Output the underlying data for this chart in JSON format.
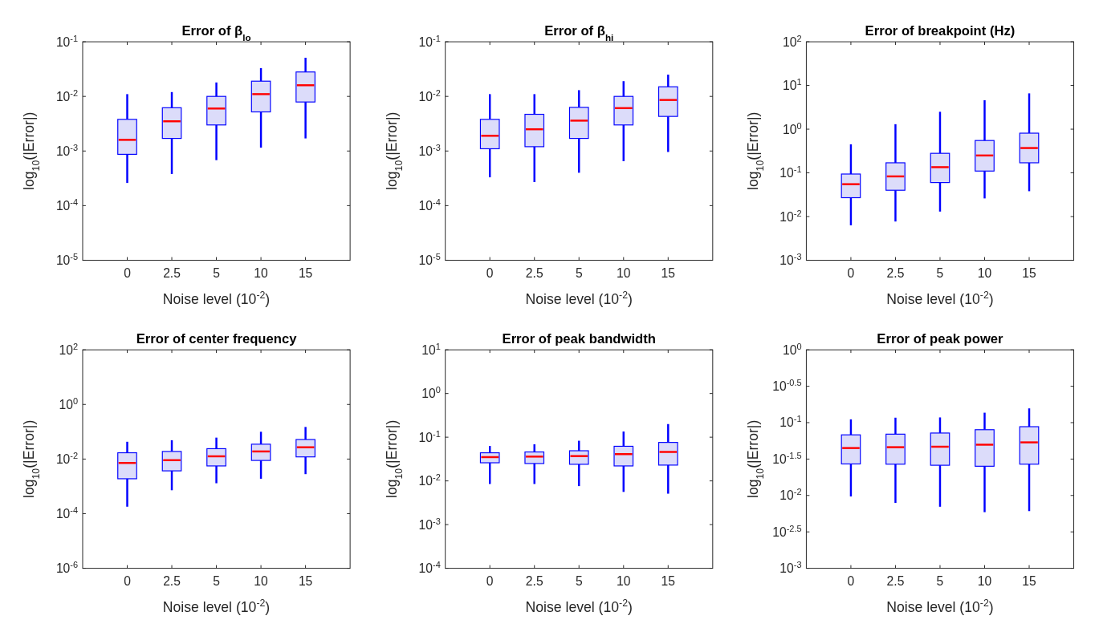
{
  "chart_data": [
    {
      "type": "box",
      "title": "Error of β$_{lo}$",
      "xlabel": "Noise level (10$^{-2}$)",
      "ylabel": "log$_{10}$(|Error|)",
      "categories": [
        "0",
        "2.5",
        "5",
        "10",
        "15"
      ],
      "log": "y",
      "ylim": [
        1e-05,
        0.1
      ],
      "yticks": [
        {
          "value": 1e-05,
          "label": "10$^{-5}$"
        },
        {
          "value": 0.0001,
          "label": "10$^{-4}$"
        },
        {
          "value": 0.001,
          "label": "10$^{-3}$"
        },
        {
          "value": 0.01,
          "label": "10$^{-2}$"
        },
        {
          "value": 0.1,
          "label": "10$^{-1}$"
        }
      ],
      "grid": false,
      "series": [
        {
          "color": "#0000ff",
          "boxes": [
            {
              "low": 0.00026,
              "q1": 0.00087,
              "median": 0.0016,
              "q3": 0.0038,
              "high": 0.011
            },
            {
              "low": 0.00038,
              "q1": 0.0017,
              "median": 0.0035,
              "q3": 0.0062,
              "high": 0.012
            },
            {
              "low": 0.00068,
              "q1": 0.003,
              "median": 0.006,
              "q3": 0.01,
              "high": 0.018
            },
            {
              "low": 0.00115,
              "q1": 0.0052,
              "median": 0.011,
              "q3": 0.019,
              "high": 0.033
            },
            {
              "low": 0.0017,
              "q1": 0.0079,
              "median": 0.016,
              "q3": 0.028,
              "high": 0.051
            }
          ]
        }
      ]
    },
    {
      "type": "box",
      "title": "Error of β$_{hi}$",
      "xlabel": "Noise level (10$^{-2}$)",
      "ylabel": "log$_{10}$(|Error|)",
      "categories": [
        "0",
        "2.5",
        "5",
        "10",
        "15"
      ],
      "log": "y",
      "ylim": [
        1e-05,
        0.1
      ],
      "yticks": [
        {
          "value": 1e-05,
          "label": "10$^{-5}$"
        },
        {
          "value": 0.0001,
          "label": "10$^{-4}$"
        },
        {
          "value": 0.001,
          "label": "10$^{-3}$"
        },
        {
          "value": 0.01,
          "label": "10$^{-2}$"
        },
        {
          "value": 0.1,
          "label": "10$^{-1}$"
        }
      ],
      "grid": false,
      "series": [
        {
          "color": "#0000ff",
          "boxes": [
            {
              "low": 0.00033,
              "q1": 0.0011,
              "median": 0.0019,
              "q3": 0.0038,
              "high": 0.011
            },
            {
              "low": 0.00027,
              "q1": 0.0012,
              "median": 0.0025,
              "q3": 0.0047,
              "high": 0.011
            },
            {
              "low": 0.0004,
              "q1": 0.0017,
              "median": 0.0036,
              "q3": 0.0063,
              "high": 0.013
            },
            {
              "low": 0.00065,
              "q1": 0.003,
              "median": 0.0061,
              "q3": 0.01,
              "high": 0.019
            },
            {
              "low": 0.00096,
              "q1": 0.0043,
              "median": 0.0086,
              "q3": 0.015,
              "high": 0.025
            }
          ]
        }
      ]
    },
    {
      "type": "box",
      "title": "Error of breakpoint (Hz)",
      "xlabel": "Noise level (10$^{-2}$)",
      "ylabel": "log$_{10}$(|Error|)",
      "categories": [
        "0",
        "2.5",
        "5",
        "10",
        "15"
      ],
      "log": "y",
      "ylim": [
        0.001,
        100
      ],
      "yticks": [
        {
          "value": 0.001,
          "label": "10$^{-3}$"
        },
        {
          "value": 0.01,
          "label": "10$^{-2}$"
        },
        {
          "value": 0.1,
          "label": "10$^{-1}$"
        },
        {
          "value": 1,
          "label": "10$^{0}$"
        },
        {
          "value": 10,
          "label": "10$^{1}$"
        },
        {
          "value": 100,
          "label": "10$^{2}$"
        }
      ],
      "grid": false,
      "series": [
        {
          "color": "#0000ff",
          "boxes": [
            {
              "low": 0.0063,
              "q1": 0.027,
              "median": 0.055,
              "q3": 0.094,
              "high": 0.45
            },
            {
              "low": 0.0077,
              "q1": 0.04,
              "median": 0.083,
              "q3": 0.17,
              "high": 1.3
            },
            {
              "low": 0.013,
              "q1": 0.06,
              "median": 0.135,
              "q3": 0.28,
              "high": 2.5
            },
            {
              "low": 0.026,
              "q1": 0.11,
              "median": 0.25,
              "q3": 0.55,
              "high": 4.6
            },
            {
              "low": 0.038,
              "q1": 0.17,
              "median": 0.37,
              "q3": 0.81,
              "high": 6.6
            }
          ]
        }
      ]
    },
    {
      "type": "box",
      "title": "Error of center frequency",
      "xlabel": "Noise level (10$^{-2}$)",
      "ylabel": "log$_{10}$(|Error|)",
      "categories": [
        "0",
        "2.5",
        "5",
        "10",
        "15"
      ],
      "log": "y",
      "ylim": [
        1e-06,
        100
      ],
      "yticks": [
        {
          "value": 1e-06,
          "label": "10$^{-6}$"
        },
        {
          "value": 0.0001,
          "label": "10$^{-4}$"
        },
        {
          "value": 0.01,
          "label": "10$^{-2}$"
        },
        {
          "value": 1,
          "label": "10$^{0}$"
        },
        {
          "value": 100,
          "label": "10$^{2}$"
        }
      ],
      "grid": false,
      "series": [
        {
          "color": "#0000ff",
          "boxes": [
            {
              "low": 0.00018,
              "q1": 0.0019,
              "median": 0.0072,
              "q3": 0.017,
              "high": 0.043
            },
            {
              "low": 0.00072,
              "q1": 0.0037,
              "median": 0.0091,
              "q3": 0.019,
              "high": 0.049
            },
            {
              "low": 0.0013,
              "q1": 0.0056,
              "median": 0.0126,
              "q3": 0.024,
              "high": 0.061
            },
            {
              "low": 0.0019,
              "q1": 0.0089,
              "median": 0.019,
              "q3": 0.035,
              "high": 0.1
            },
            {
              "low": 0.0028,
              "q1": 0.012,
              "median": 0.027,
              "q3": 0.052,
              "high": 0.15
            }
          ]
        }
      ]
    },
    {
      "type": "box",
      "title": "Error of peak bandwidth",
      "xlabel": "Noise level (10$^{-2}$)",
      "ylabel": "log$_{10}$(|Error|)",
      "categories": [
        "0",
        "2.5",
        "5",
        "10",
        "15"
      ],
      "log": "y",
      "ylim": [
        0.0001,
        10
      ],
      "yticks": [
        {
          "value": 0.0001,
          "label": "10$^{-4}$"
        },
        {
          "value": 0.001,
          "label": "10$^{-3}$"
        },
        {
          "value": 0.01,
          "label": "10$^{-2}$"
        },
        {
          "value": 0.1,
          "label": "10$^{-1}$"
        },
        {
          "value": 1,
          "label": "10$^{0}$"
        },
        {
          "value": 10,
          "label": "10$^{1}$"
        }
      ],
      "grid": false,
      "series": [
        {
          "color": "#0000ff",
          "boxes": [
            {
              "low": 0.0085,
              "q1": 0.026,
              "median": 0.035,
              "q3": 0.044,
              "high": 0.063
            },
            {
              "low": 0.0085,
              "q1": 0.025,
              "median": 0.036,
              "q3": 0.046,
              "high": 0.069
            },
            {
              "low": 0.0076,
              "q1": 0.024,
              "median": 0.037,
              "q3": 0.049,
              "high": 0.083
            },
            {
              "low": 0.0056,
              "q1": 0.022,
              "median": 0.041,
              "q3": 0.062,
              "high": 0.135
            },
            {
              "low": 0.0051,
              "q1": 0.023,
              "median": 0.046,
              "q3": 0.076,
              "high": 0.2
            }
          ]
        }
      ]
    },
    {
      "type": "box",
      "title": "Error of peak power",
      "xlabel": "Noise level (10$^{-2}$)",
      "ylabel": "log$_{10}$(|Error|)",
      "categories": [
        "0",
        "2.5",
        "5",
        "10",
        "15"
      ],
      "log": "y",
      "ylim": [
        0.001,
        1
      ],
      "yticks": [
        {
          "value": 0.001,
          "label": "10$^{-3}$"
        },
        {
          "value": 0.003162,
          "label": "10$^{-2.5}$"
        },
        {
          "value": 0.01,
          "label": "10$^{-2}$"
        },
        {
          "value": 0.03162,
          "label": "10$^{-1.5}$"
        },
        {
          "value": 0.1,
          "label": "10$^{-1}$"
        },
        {
          "value": 0.3162,
          "label": "10$^{-0.5}$"
        },
        {
          "value": 1,
          "label": "10$^{0}$"
        }
      ],
      "grid": false,
      "series": [
        {
          "color": "#0000ff",
          "boxes": [
            {
              "low": 0.0097,
              "q1": 0.0271,
              "median": 0.0448,
              "q3": 0.068,
              "high": 0.111
            },
            {
              "low": 0.0079,
              "q1": 0.0269,
              "median": 0.046,
              "q3": 0.0695,
              "high": 0.117
            },
            {
              "low": 0.007,
              "q1": 0.026,
              "median": 0.0467,
              "q3": 0.072,
              "high": 0.118
            },
            {
              "low": 0.0059,
              "q1": 0.0252,
              "median": 0.0498,
              "q3": 0.08,
              "high": 0.137
            },
            {
              "low": 0.0061,
              "q1": 0.0269,
              "median": 0.0536,
              "q3": 0.088,
              "high": 0.157
            }
          ]
        }
      ]
    }
  ]
}
